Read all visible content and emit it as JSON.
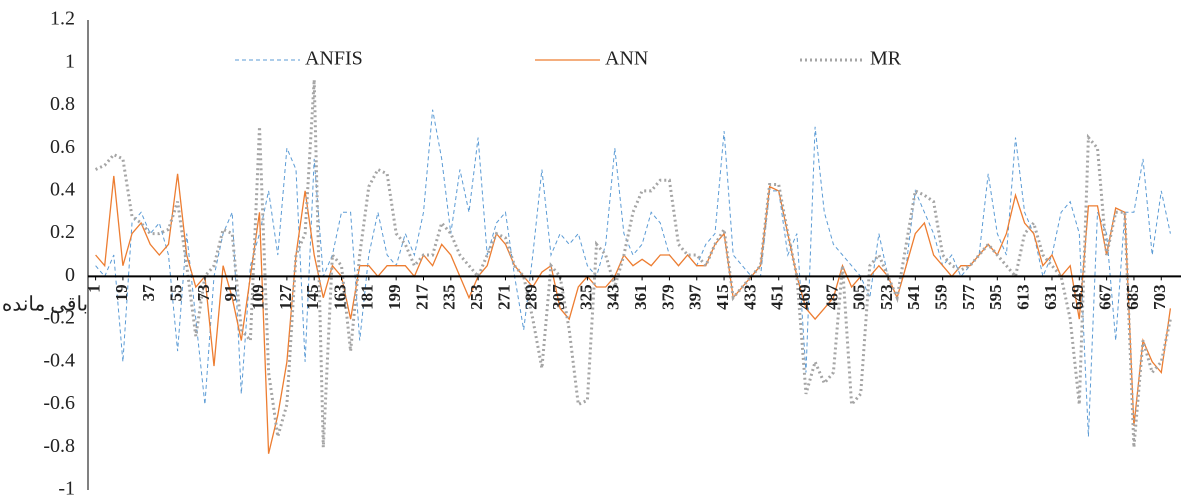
{
  "chart_data": {
    "type": "line",
    "y_label": "باقی مانده",
    "legend": "top",
    "xlim": [
      -4,
      716
    ],
    "ylim": [
      -1,
      1.2
    ],
    "yticks": [
      -1,
      -0.8,
      -0.6,
      -0.4,
      -0.2,
      0,
      0.2,
      0.4,
      0.6,
      0.8,
      1,
      1.2
    ],
    "xticks": [
      1,
      19,
      37,
      55,
      73,
      91,
      109,
      127,
      145,
      163,
      181,
      199,
      217,
      235,
      253,
      271,
      289,
      307,
      325,
      343,
      361,
      379,
      397,
      415,
      433,
      451,
      469,
      487,
      505,
      523,
      541,
      559,
      577,
      595,
      613,
      631,
      649,
      667,
      685,
      703
    ],
    "x": [
      1,
      7,
      13,
      19,
      25,
      31,
      37,
      43,
      49,
      55,
      61,
      67,
      73,
      79,
      85,
      91,
      97,
      103,
      109,
      115,
      121,
      127,
      133,
      139,
      145,
      151,
      157,
      163,
      169,
      175,
      181,
      187,
      193,
      199,
      205,
      211,
      217,
      223,
      229,
      235,
      241,
      247,
      253,
      259,
      265,
      271,
      277,
      283,
      289,
      295,
      301,
      307,
      313,
      319,
      325,
      331,
      337,
      343,
      349,
      355,
      361,
      367,
      373,
      379,
      385,
      391,
      397,
      403,
      409,
      415,
      421,
      427,
      433,
      439,
      445,
      451,
      457,
      463,
      469,
      475,
      481,
      487,
      493,
      499,
      505,
      511,
      517,
      523,
      529,
      535,
      541,
      547,
      553,
      559,
      565,
      571,
      577,
      583,
      589,
      595,
      601,
      607,
      613,
      619,
      625,
      631,
      637,
      643,
      649,
      655,
      661,
      667,
      673,
      679,
      685,
      691,
      697,
      703,
      709
    ],
    "series": [
      {
        "name": "ANFIS",
        "color": "#5b9bd5",
        "dash": "dashed",
        "values": [
          0.05,
          0,
          0.1,
          -0.4,
          0.25,
          0.3,
          0.2,
          0.25,
          0.1,
          -0.35,
          0.2,
          -0.2,
          -0.6,
          0,
          0.2,
          0.3,
          -0.55,
          0.05,
          0.2,
          0.4,
          0.1,
          0.6,
          0.5,
          -0.4,
          0.55,
          0,
          0.1,
          0.3,
          0.3,
          -0.3,
          0.1,
          0.3,
          0.1,
          0.05,
          0.2,
          0.1,
          0.3,
          0.78,
          0.55,
          0.2,
          0.5,
          0.3,
          0.65,
          0.1,
          0.25,
          0.3,
          0,
          -0.25,
          0.1,
          0.5,
          0.1,
          0.2,
          0.15,
          0.2,
          0.05,
          0,
          0.15,
          0.6,
          0.2,
          0.1,
          0.15,
          0.3,
          0.25,
          0.1,
          0.05,
          0.1,
          0.05,
          0.15,
          0.2,
          0.68,
          0.1,
          0.05,
          0,
          0,
          0.4,
          0.4,
          0.1,
          0.2,
          -0.45,
          0.7,
          0.3,
          0.15,
          0.1,
          0.05,
          0,
          -0.1,
          0.2,
          0,
          -0.1,
          0.05,
          0.4,
          0.3,
          0.2,
          0.05,
          0.1,
          0,
          0.05,
          0.1,
          0.48,
          0.2,
          0.1,
          0.65,
          0.3,
          0.2,
          0,
          0.1,
          0.3,
          0.35,
          0.2,
          -0.75,
          0.3,
          0.2,
          -0.3,
          0.3,
          0.3,
          0.55,
          0.1,
          0.4,
          0.2
        ]
      },
      {
        "name": "ANN",
        "color": "#ed7d31",
        "dash": "solid",
        "values": [
          0.1,
          0.05,
          0.47,
          0.05,
          0.2,
          0.25,
          0.15,
          0.1,
          0.15,
          0.48,
          0.1,
          -0.05,
          0,
          -0.42,
          0.05,
          -0.1,
          -0.3,
          0,
          0.3,
          -0.83,
          -0.65,
          -0.4,
          0.1,
          0.4,
          0.1,
          -0.1,
          0.05,
          0,
          -0.2,
          0.05,
          0.05,
          0,
          0.05,
          0.05,
          0.05,
          0,
          0.1,
          0.05,
          0.15,
          0.1,
          0,
          -0.1,
          0,
          0.05,
          0.2,
          0.15,
          0.05,
          0,
          -0.05,
          0.02,
          0.05,
          -0.15,
          -0.2,
          -0.05,
          0,
          -0.05,
          -0.05,
          0,
          0.1,
          0.05,
          0.08,
          0.05,
          0.1,
          0.1,
          0.05,
          0.1,
          0.05,
          0.05,
          0.15,
          0.2,
          -0.1,
          -0.05,
          0,
          0.05,
          0.42,
          0.4,
          0.2,
          0,
          -0.15,
          -0.2,
          -0.15,
          -0.1,
          0.05,
          -0.05,
          0,
          0,
          0.05,
          0,
          -0.1,
          0.05,
          0.2,
          0.25,
          0.1,
          0.05,
          0,
          0.05,
          0.05,
          0.1,
          0.15,
          0.1,
          0.2,
          0.38,
          0.25,
          0.2,
          0.05,
          0.1,
          0,
          0.05,
          -0.2,
          0.33,
          0.33,
          0.1,
          0.32,
          0.3,
          -0.7,
          -0.3,
          -0.4,
          -0.45,
          -0.15
        ]
      },
      {
        "name": "MR",
        "color": "#a5a5a5",
        "dash": "dotted",
        "values": [
          0.5,
          0.52,
          0.57,
          0.55,
          0.28,
          0.25,
          0.2,
          0.2,
          0.22,
          0.35,
          0.05,
          -0.28,
          0,
          0.05,
          0.22,
          0.2,
          -0.25,
          -0.3,
          0.7,
          -0.45,
          -0.75,
          -0.6,
          0.1,
          0.2,
          0.92,
          -0.8,
          0.1,
          0.05,
          -0.35,
          0.1,
          0.42,
          0.5,
          0.48,
          0.2,
          0.15,
          0.05,
          0.1,
          0.1,
          0.25,
          0.2,
          0.1,
          0.05,
          0,
          0.1,
          0.2,
          0.18,
          0.05,
          0,
          -0.2,
          -0.43,
          0.05,
          0,
          -0.25,
          -0.6,
          -0.58,
          0.15,
          0.1,
          -0.05,
          0.1,
          0.3,
          0.4,
          0.4,
          0.45,
          0.45,
          0.15,
          0.1,
          0.1,
          0.05,
          0.15,
          0.22,
          -0.1,
          -0.05,
          0,
          0.05,
          0.43,
          0.43,
          0.2,
          0,
          -0.55,
          -0.4,
          -0.5,
          -0.45,
          0.05,
          -0.6,
          -0.55,
          0.05,
          0.1,
          0,
          -0.1,
          0.15,
          0.4,
          0.38,
          0.35,
          0.1,
          0.05,
          0.03,
          0.05,
          0.1,
          0.15,
          0.1,
          0.05,
          0,
          0.2,
          0.25,
          0.1,
          0.05,
          0,
          -0.2,
          -0.6,
          0.65,
          0.6,
          0.1,
          0.3,
          0.3,
          -0.8,
          -0.3,
          -0.45,
          -0.4,
          -0.2
        ]
      }
    ]
  }
}
